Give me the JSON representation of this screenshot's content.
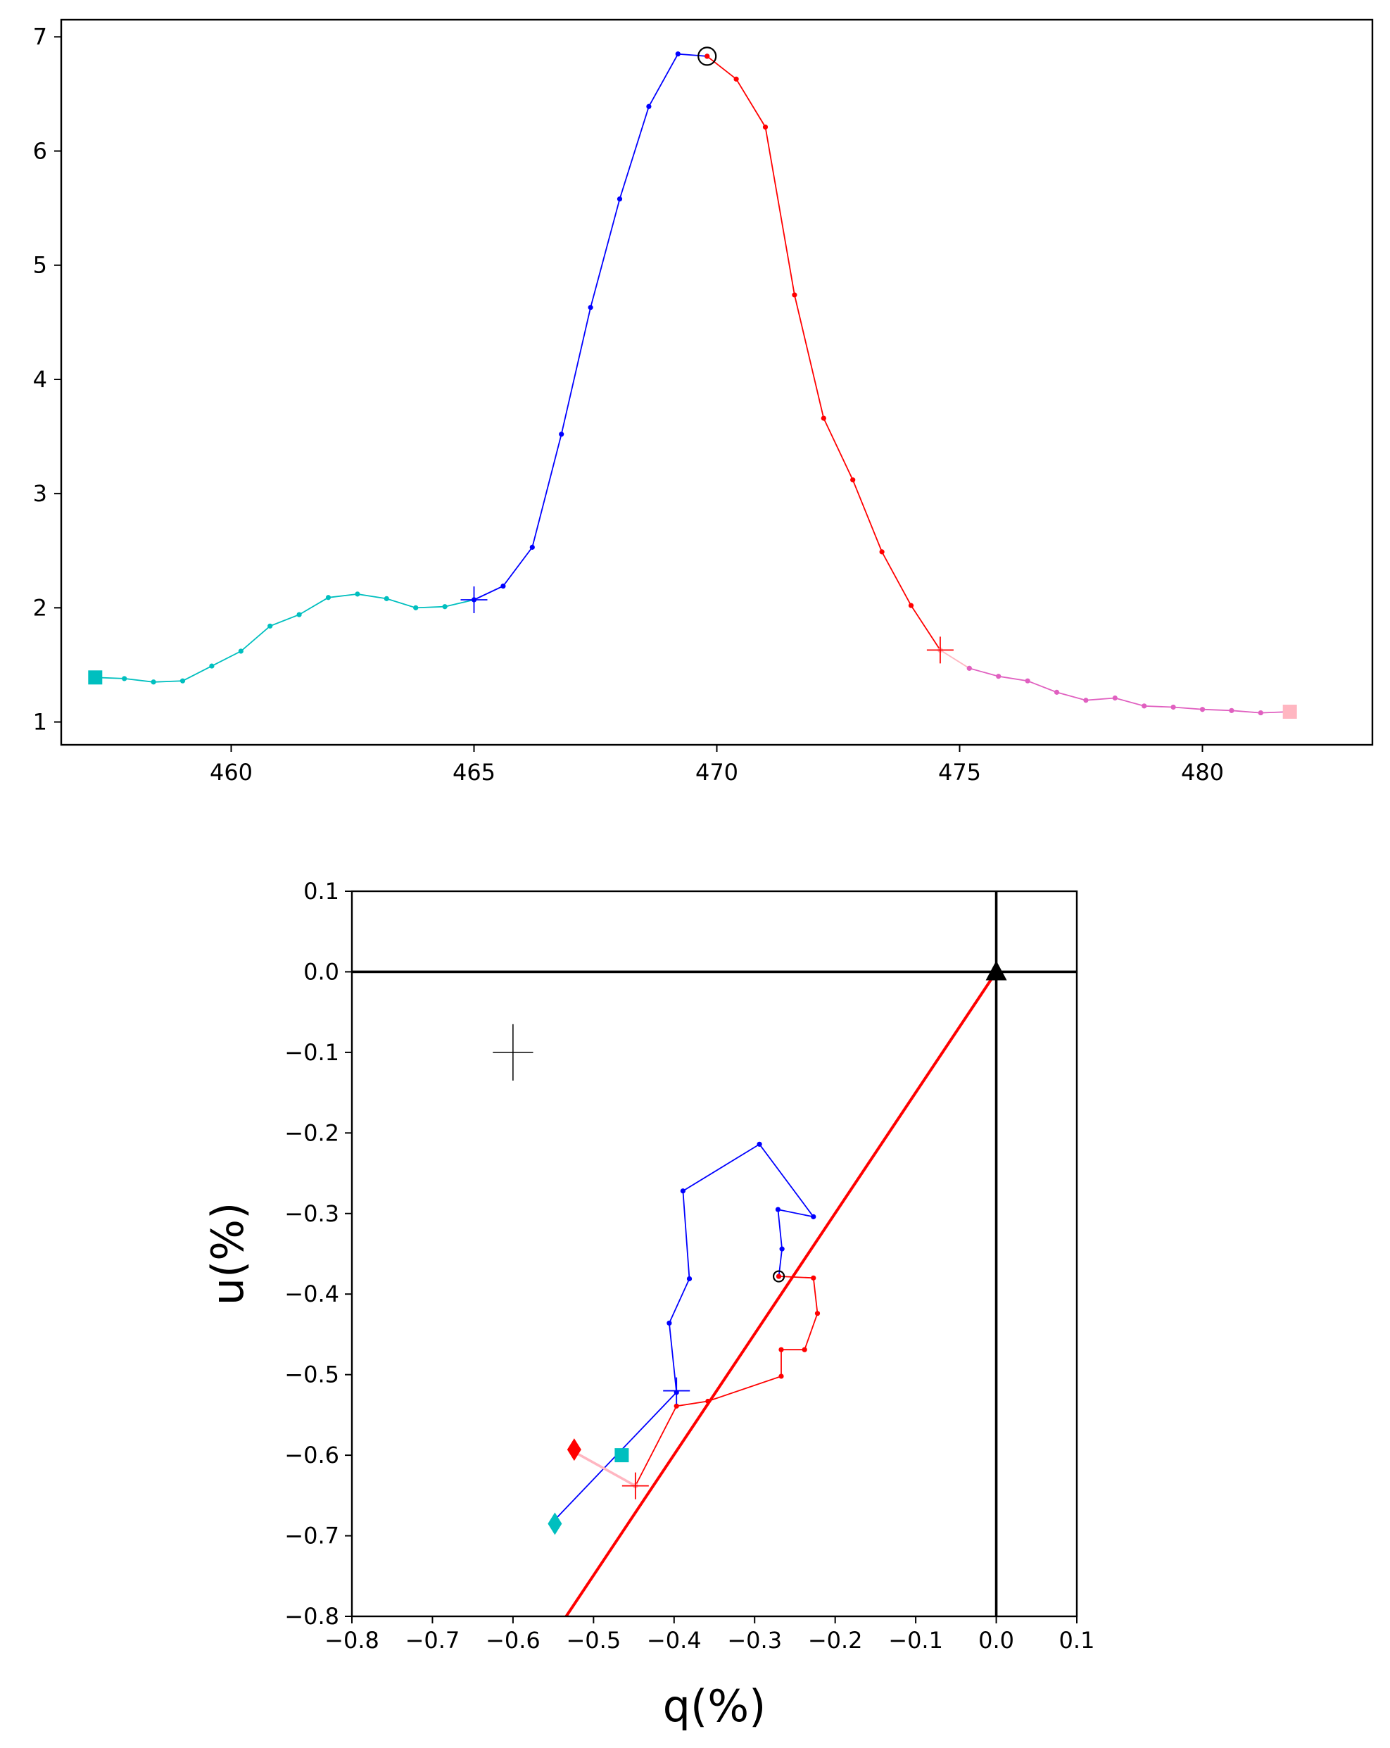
{
  "chart_data": [
    {
      "type": "line",
      "title": "",
      "xlabel": "",
      "ylabel": "",
      "xlim": [
        456.5,
        483.5
      ],
      "ylim": [
        0.8,
        7.15
      ],
      "xticks": [
        460,
        465,
        470,
        475,
        480
      ],
      "yticks": [
        1,
        2,
        3,
        4,
        5,
        6,
        7
      ],
      "grid": false,
      "series": [
        {
          "color": "#00bfbf",
          "x": [
            457.2,
            457.8,
            458.4,
            459.0,
            459.6,
            460.2,
            460.8,
            461.4,
            462.0,
            462.6,
            463.2,
            463.8,
            464.4,
            465.0
          ],
          "y": [
            1.39,
            1.38,
            1.35,
            1.36,
            1.49,
            1.62,
            1.84,
            1.94,
            2.09,
            2.12,
            2.08,
            2.0,
            2.01,
            2.07
          ]
        },
        {
          "color": "#0000ff",
          "x": [
            465.0,
            465.6,
            466.2,
            466.8,
            467.4,
            468.0,
            468.6,
            469.2,
            469.8
          ],
          "y": [
            2.07,
            2.19,
            2.53,
            3.52,
            4.63,
            5.58,
            6.39,
            6.85,
            6.83
          ]
        },
        {
          "color": "#ff0000",
          "x": [
            469.8,
            470.4,
            471.0,
            471.6,
            472.2,
            472.8,
            473.4,
            474.0,
            474.6
          ],
          "y": [
            6.83,
            6.63,
            6.21,
            4.74,
            3.66,
            3.12,
            2.49,
            2.02,
            1.63
          ]
        },
        {
          "color": "#ffb6c1",
          "x": [
            474.6,
            475.2
          ],
          "y": [
            1.63,
            1.47
          ]
        },
        {
          "color": "#e060c0",
          "x": [
            475.2,
            475.8,
            476.4,
            477.0,
            477.6,
            478.2,
            478.8,
            479.4,
            480.0,
            480.6,
            481.2,
            481.8
          ],
          "y": [
            1.47,
            1.4,
            1.36,
            1.26,
            1.19,
            1.21,
            1.14,
            1.13,
            1.11,
            1.1,
            1.08,
            1.09
          ]
        }
      ],
      "markers": [
        {
          "kind": "square",
          "x": 457.2,
          "y": 1.39,
          "color": "#00bfbf"
        },
        {
          "kind": "square",
          "x": 481.8,
          "y": 1.09,
          "color": "#ffb6c1"
        },
        {
          "kind": "plus",
          "x": 465.0,
          "y": 2.07,
          "color": "#0000ff"
        },
        {
          "kind": "plus",
          "x": 474.6,
          "y": 1.63,
          "color": "#ff0000"
        },
        {
          "kind": "circle",
          "x": 469.8,
          "y": 6.83,
          "color": "#000000"
        }
      ]
    },
    {
      "type": "scatter",
      "title": "",
      "xlabel": "q(%)",
      "ylabel": "u(%)",
      "xlim": [
        -0.8,
        0.1
      ],
      "ylim": [
        -0.8,
        0.1
      ],
      "xticks": [
        -0.8,
        -0.7,
        -0.6,
        -0.5,
        -0.4,
        -0.3,
        -0.2,
        -0.1,
        0.0,
        0.1
      ],
      "yticks": [
        0.1,
        0.0,
        -0.1,
        -0.2,
        -0.3,
        -0.4,
        -0.5,
        -0.6,
        -0.7,
        -0.8
      ],
      "xtick_labels": [
        "−0.8",
        "−0.7",
        "−0.6",
        "−0.5",
        "−0.4",
        "−0.3",
        "−0.2",
        "−0.1",
        "0.0",
        "0.1"
      ],
      "ytick_labels": [
        "0.1",
        "0.0",
        "−0.1",
        "−0.2",
        "−0.3",
        "−0.4",
        "−0.5",
        "−0.6",
        "−0.7",
        "−0.8"
      ],
      "grid": false,
      "zero_lines": {
        "color": "#000000"
      },
      "fit_line": {
        "color": "#ff0000",
        "x": [
          0.0,
          -0.534
        ],
        "y": [
          0.0,
          -0.8
        ]
      },
      "series": [
        {
          "color": "#0000ff",
          "x": [
            -0.548,
            -0.397,
            -0.406,
            -0.381,
            -0.389,
            -0.294,
            -0.227,
            -0.271,
            -0.266,
            -0.27
          ],
          "y": [
            -0.68,
            -0.522,
            -0.436,
            -0.381,
            -0.272,
            -0.214,
            -0.304,
            -0.295,
            -0.344,
            -0.378
          ]
        },
        {
          "color": "#ff0000",
          "x": [
            -0.27,
            -0.227,
            -0.222,
            -0.238,
            -0.267,
            -0.267,
            -0.358,
            -0.397,
            -0.448
          ],
          "y": [
            -0.378,
            -0.38,
            -0.424,
            -0.469,
            -0.469,
            -0.502,
            -0.533,
            -0.539,
            -0.638
          ]
        },
        {
          "color": "#ffb6c1",
          "x": [
            -0.448,
            -0.522
          ],
          "y": [
            -0.638,
            -0.597
          ]
        }
      ],
      "markers": [
        {
          "kind": "square",
          "x": -0.465,
          "y": -0.6,
          "color": "#00bfbf"
        },
        {
          "kind": "diamond",
          "x": -0.548,
          "y": -0.685,
          "color": "#00bfbf"
        },
        {
          "kind": "diamond",
          "x": -0.524,
          "y": -0.593,
          "color": "#ff0000"
        },
        {
          "kind": "plus",
          "x": -0.397,
          "y": -0.52,
          "color": "#0000ff"
        },
        {
          "kind": "plus",
          "x": -0.448,
          "y": -0.638,
          "color": "#ff0000"
        },
        {
          "kind": "circle",
          "x": -0.27,
          "y": -0.378,
          "color": "#000000"
        },
        {
          "kind": "triangle",
          "x": 0.0,
          "y": 0.0,
          "color": "#000000"
        }
      ],
      "error_cross": {
        "x": -0.6,
        "y": -0.1,
        "dx": 0.025,
        "dy": 0.035,
        "color": "#000000"
      }
    }
  ]
}
